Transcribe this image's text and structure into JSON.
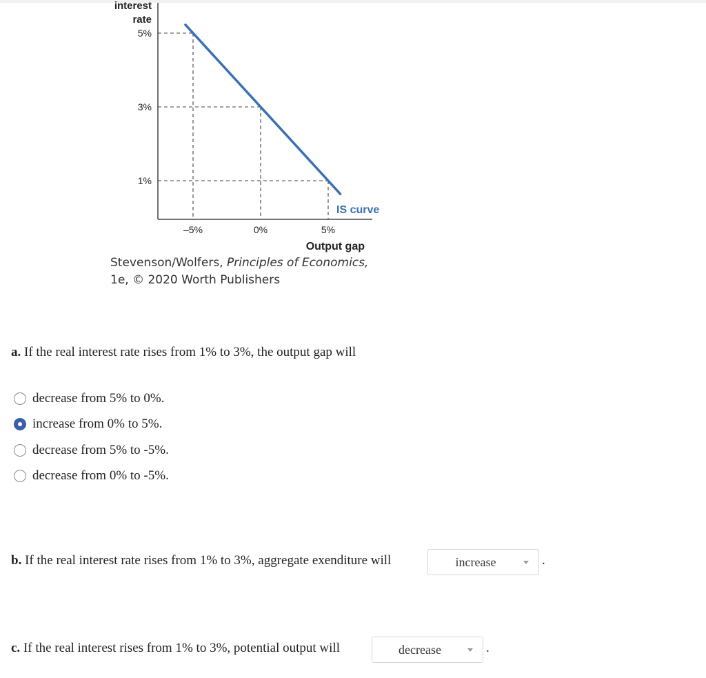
{
  "figure": {
    "y_axis_label_line1": "interest",
    "y_axis_label_line2": "rate",
    "x_axis_label": "Output gap",
    "curve_label": "IS curve",
    "caption_line1_prefix": "Stevenson/Wolfers, ",
    "caption_line1_italic": "Principles of Economics,",
    "caption_line2": "1e, © 2020 Worth Publishers"
  },
  "chart_data": {
    "type": "line",
    "xlabel": "Output gap",
    "ylabel": "interest rate",
    "x_ticks": [
      "–5%",
      "0%",
      "5%"
    ],
    "y_ticks": [
      "5%",
      "3%",
      "1%"
    ],
    "series": [
      {
        "name": "IS curve",
        "x": [
          -5,
          0,
          5
        ],
        "y": [
          5,
          3,
          1
        ],
        "color": "#3b6fb6"
      }
    ],
    "reference_lines": "dashed guides from each point to both axes",
    "grid": false
  },
  "question_a": {
    "label": "a.",
    "text": "If the real interest rate rises from 1% to 3%, the output gap will",
    "options": [
      {
        "label": "decrease from 5% to 0%.",
        "selected": false
      },
      {
        "label": "increase from 0% to 5%.",
        "selected": true
      },
      {
        "label": "decrease from 5% to -5%.",
        "selected": false
      },
      {
        "label": "decrease from 0% to -5%.",
        "selected": false
      }
    ]
  },
  "question_b": {
    "label": "b.",
    "text": "If the real interest rate rises from 1% to 3%, aggregate exenditure will",
    "selected_value": "increase",
    "period": "."
  },
  "question_c": {
    "label": "c.",
    "text": "If the real interest rises from 1% to 3%, potential output will",
    "selected_value": "decrease",
    "period": "."
  },
  "colors": {
    "accent": "#3b6fb6",
    "radio_selected": "#3a5ea8"
  }
}
